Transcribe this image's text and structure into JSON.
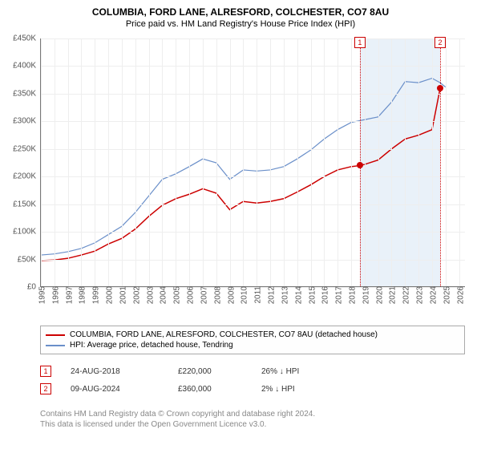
{
  "title_main": "COLUMBIA, FORD LANE, ALRESFORD, COLCHESTER, CO7 8AU",
  "title_sub": "Price paid vs. HM Land Registry's House Price Index (HPI)",
  "chart": {
    "type": "line",
    "background_color": "#ffffff",
    "grid_color": "#eeeeee",
    "axis_color": "#777777",
    "tick_label_color": "#555555",
    "tick_fontsize": 10,
    "title_fontsize": 12,
    "xlim": [
      1995,
      2026.5
    ],
    "ylim": [
      0,
      450000
    ],
    "ytick_step": 50000,
    "y_prefix": "£",
    "y_ticks": [
      "£0",
      "£50K",
      "£100K",
      "£150K",
      "£200K",
      "£250K",
      "£300K",
      "£350K",
      "£400K",
      "£450K"
    ],
    "x_ticks": [
      "1995",
      "1996",
      "1997",
      "1998",
      "1999",
      "2000",
      "2001",
      "2002",
      "2003",
      "2004",
      "2005",
      "2006",
      "2007",
      "2008",
      "2009",
      "2010",
      "2011",
      "2012",
      "2013",
      "2014",
      "2015",
      "2016",
      "2017",
      "2018",
      "2019",
      "2020",
      "2021",
      "2022",
      "2023",
      "2024",
      "2025",
      "2026"
    ],
    "shade_band": {
      "start_year": 2018.65,
      "end_year": 2024.6,
      "color": "rgba(200,220,240,0.4)"
    },
    "series_subject": {
      "label": "COLUMBIA, FORD LANE, ALRESFORD, COLCHESTER, CO7 8AU (detached house)",
      "color": "#cc0000",
      "line_width": 1.5,
      "years": [
        1995,
        1996,
        1997,
        1998,
        1999,
        2000,
        2001,
        2002,
        2003,
        2004,
        2005,
        2006,
        2007,
        2008,
        2009,
        2010,
        2011,
        2012,
        2013,
        2014,
        2015,
        2016,
        2017,
        2018,
        2018.65,
        2019,
        2020,
        2021,
        2022,
        2023,
        2024,
        2024.6
      ],
      "values": [
        48000,
        49000,
        52000,
        58000,
        65000,
        78000,
        88000,
        105000,
        128000,
        148000,
        160000,
        168000,
        178000,
        170000,
        140000,
        155000,
        152000,
        155000,
        160000,
        172000,
        185000,
        200000,
        212000,
        218000,
        220000,
        222000,
        230000,
        250000,
        268000,
        275000,
        285000,
        360000
      ]
    },
    "series_hpi": {
      "label": "HPI: Average price, detached house, Tendring",
      "color": "#6a8fc9",
      "line_width": 1.2,
      "years": [
        1995,
        1996,
        1997,
        1998,
        1999,
        2000,
        2001,
        2002,
        2003,
        2004,
        2005,
        2006,
        2007,
        2008,
        2009,
        2010,
        2011,
        2012,
        2013,
        2014,
        2015,
        2016,
        2017,
        2018,
        2019,
        2020,
        2021,
        2022,
        2023,
        2024,
        2024.6,
        2025
      ],
      "values": [
        58000,
        60000,
        64000,
        70000,
        80000,
        95000,
        110000,
        135000,
        165000,
        195000,
        205000,
        218000,
        232000,
        225000,
        195000,
        212000,
        210000,
        212000,
        218000,
        232000,
        248000,
        268000,
        285000,
        298000,
        303000,
        308000,
        335000,
        372000,
        370000,
        378000,
        370000,
        362000
      ]
    },
    "markers": [
      {
        "n": "1",
        "year": 2018.65,
        "value": 220000,
        "badge_color": "#cc0000",
        "dot_color": "#cc0000"
      },
      {
        "n": "2",
        "year": 2024.6,
        "value": 360000,
        "badge_color": "#cc0000",
        "dot_color": "#cc0000"
      }
    ]
  },
  "legend": {
    "border_color": "#aaaaaa",
    "items": [
      {
        "color": "#cc0000",
        "label": "COLUMBIA, FORD LANE, ALRESFORD, COLCHESTER, CO7 8AU (detached house)"
      },
      {
        "color": "#6a8fc9",
        "label": "HPI: Average price, detached house, Tendring"
      }
    ]
  },
  "sales": [
    {
      "n": "1",
      "date": "24-AUG-2018",
      "price": "£220,000",
      "diff": "26% ↓ HPI"
    },
    {
      "n": "2",
      "date": "09-AUG-2024",
      "price": "£360,000",
      "diff": "2% ↓ HPI"
    }
  ],
  "footer": {
    "line1": "Contains HM Land Registry data © Crown copyright and database right 2024.",
    "line2": "This data is licensed under the Open Government Licence v3.0."
  }
}
